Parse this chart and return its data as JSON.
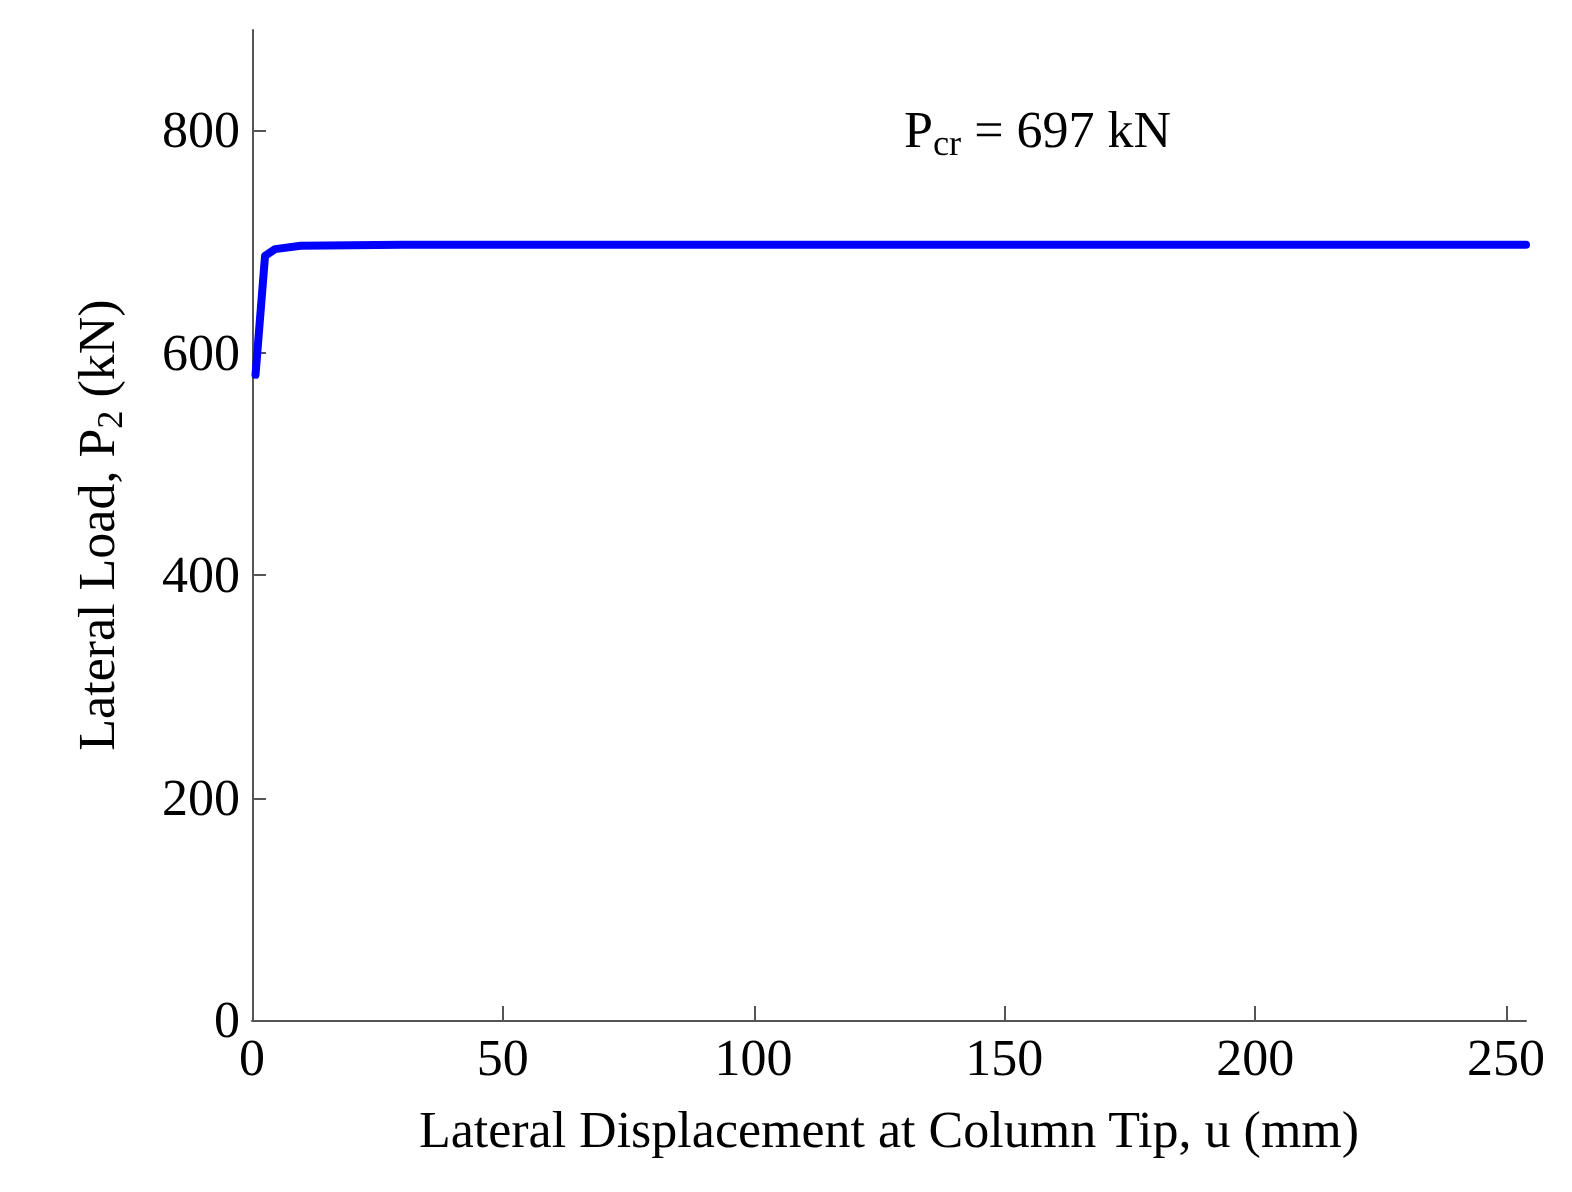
{
  "chart_data": {
    "type": "line",
    "xlabel": "Lateral Displacement at Column Tip, u (mm)",
    "ylabel": "Lateral Load, P$_{2}$ (kN)",
    "annotations": [
      "P$_{cr}$ = 697 kN"
    ],
    "series": [
      {
        "color": "#0000ff",
        "x": [
          0.7,
          2.6,
          4.6,
          9.7,
          30,
          60,
          120,
          200,
          254
        ],
        "values": [
          580,
          687,
          693,
          696,
          697,
          697,
          697,
          697,
          697
        ]
      }
    ],
    "xlim": [
      0,
      254
    ],
    "xticks": [
      0,
      50,
      100,
      150,
      200,
      250
    ],
    "ylim": [
      0,
      890
    ],
    "yticks": [
      0,
      200,
      400,
      600,
      800
    ],
    "grid": false,
    "marker": "none",
    "line_style": "solid"
  }
}
